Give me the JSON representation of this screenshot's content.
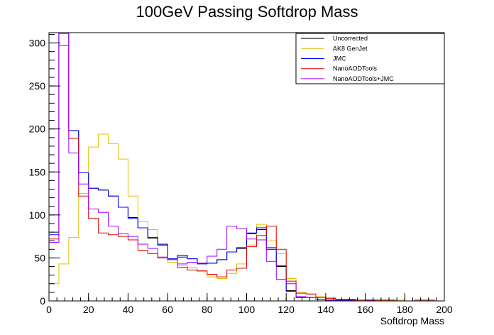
{
  "chart_data": {
    "type": "line",
    "title": "100GeV Passing Softdrop Mass",
    "xlabel": "Softdrop Mass",
    "ylabel": "",
    "xlim": [
      0,
      200
    ],
    "ylim": [
      0,
      312
    ],
    "x_ticks": [
      0,
      20,
      40,
      60,
      80,
      100,
      120,
      140,
      160,
      180,
      200
    ],
    "y_ticks": [
      0,
      50,
      100,
      150,
      200,
      250,
      300
    ],
    "bin_width": 5,
    "grid": false,
    "legend_position": "top-right",
    "series": [
      {
        "name": "Uncorrected",
        "color": "#000000",
        "values": [
          80,
          330,
          198,
          149,
          131,
          129,
          122,
          109,
          97,
          85,
          73,
          65,
          49,
          53,
          49,
          44,
          44,
          48,
          57,
          61,
          78,
          83,
          60,
          40,
          12,
          4,
          4,
          2,
          1,
          1,
          1,
          0,
          1,
          0,
          0,
          0,
          0,
          0,
          0,
          0
        ]
      },
      {
        "name": "AK8 GenJet",
        "color": "#e0c000",
        "values": [
          20,
          43,
          74,
          125,
          179,
          194,
          183,
          165,
          122,
          92,
          83,
          66,
          45,
          41,
          39,
          34,
          28,
          26,
          32,
          43,
          65,
          89,
          70,
          55,
          26,
          10,
          8,
          5,
          4,
          2,
          2,
          1,
          1,
          1,
          1,
          1,
          0,
          0,
          0,
          0
        ]
      },
      {
        "name": "JMC",
        "color": "#0000ff",
        "values": [
          77,
          332,
          198,
          149,
          131,
          129,
          122,
          109,
          96,
          85,
          74,
          66,
          49,
          51,
          49,
          43,
          44,
          48,
          57,
          62,
          79,
          85,
          62,
          41,
          11,
          4,
          4,
          2,
          1,
          1,
          1,
          0,
          1,
          0,
          0,
          0,
          0,
          0,
          0,
          0
        ]
      },
      {
        "name": "NanoAODTools",
        "color": "#e00000",
        "values": [
          72,
          297,
          189,
          122,
          96,
          79,
          77,
          75,
          71,
          59,
          55,
          50,
          48,
          39,
          36,
          35,
          31,
          28,
          36,
          38,
          63,
          76,
          87,
          60,
          23,
          9,
          8,
          4,
          3,
          2,
          2,
          1,
          1,
          1,
          1,
          0,
          0,
          1,
          1,
          0
        ]
      },
      {
        "name": "NanoAODTools+JMC",
        "color": "#a000ff",
        "values": [
          68,
          311,
          172,
          136,
          107,
          103,
          87,
          78,
          75,
          66,
          61,
          51,
          48,
          43,
          45,
          44,
          52,
          60,
          87,
          84,
          72,
          71,
          46,
          25,
          20,
          5,
          4,
          2,
          1,
          1,
          1,
          0,
          1,
          0,
          0,
          0,
          0,
          0,
          0,
          0
        ]
      }
    ]
  }
}
